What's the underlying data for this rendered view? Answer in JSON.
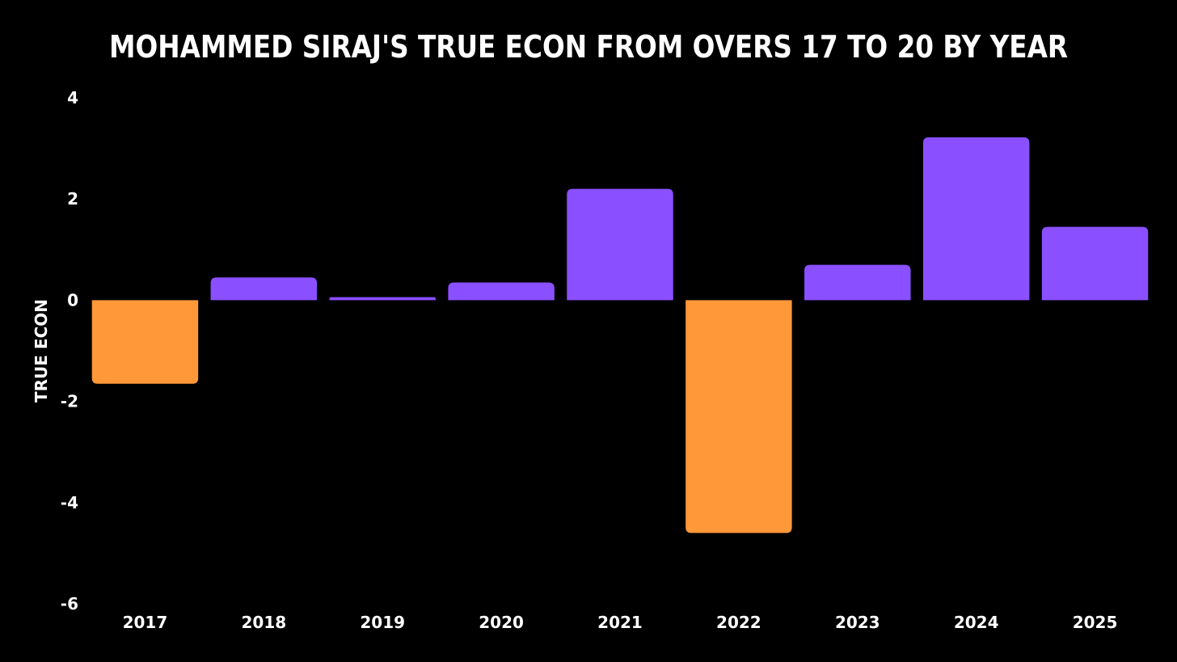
{
  "chart_data": {
    "type": "bar",
    "title": "MOHAMMED SIRAJ'S TRUE ECON FROM OVERS 17 TO 20 BY YEAR",
    "xlabel": "",
    "ylabel": "TRUE ECON",
    "ylim": [
      -6,
      4
    ],
    "yticks": [
      4,
      2,
      0,
      -2,
      -4,
      -6
    ],
    "categories": [
      "2017",
      "2018",
      "2019",
      "2020",
      "2021",
      "2022",
      "2023",
      "2024",
      "2025"
    ],
    "values": [
      -1.65,
      0.45,
      0.06,
      0.35,
      2.2,
      -4.6,
      0.7,
      3.22,
      1.45
    ],
    "grid": false,
    "colors": {
      "positive": "#8a4fff",
      "negative": "#ff9838",
      "background": "#000000",
      "text": "#ffffff"
    }
  }
}
